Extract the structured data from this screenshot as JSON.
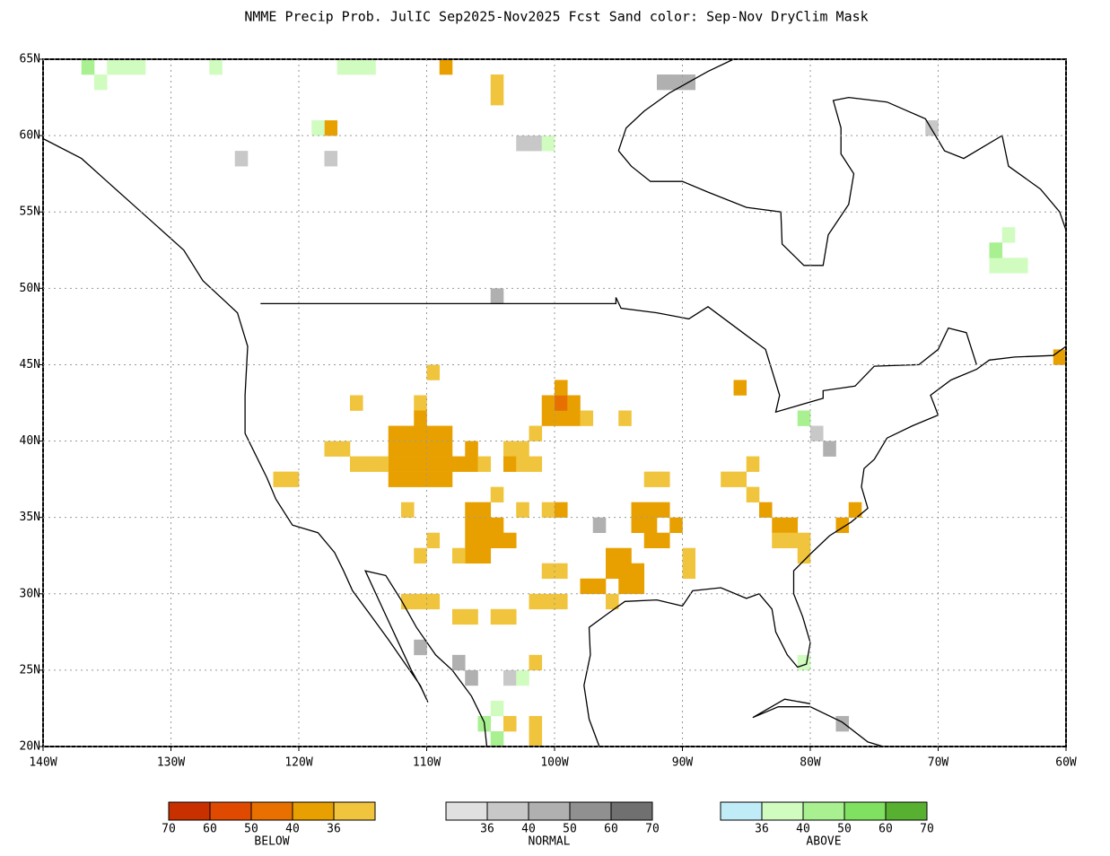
{
  "title": "NMME Precip Prob. JulIC  Sep2025-Nov2025 Fcst  Sand color: Sep-Nov DryClim Mask",
  "map": {
    "lonlim": [
      -140,
      -60
    ],
    "latlim": [
      20,
      65
    ],
    "lonticks": [
      {
        "value": -140,
        "label": "140W"
      },
      {
        "value": -130,
        "label": "130W"
      },
      {
        "value": -120,
        "label": "120W"
      },
      {
        "value": -110,
        "label": "110W"
      },
      {
        "value": -100,
        "label": "100W"
      },
      {
        "value": -90,
        "label": "90W"
      },
      {
        "value": -80,
        "label": "80W"
      },
      {
        "value": -70,
        "label": "70W"
      },
      {
        "value": -60,
        "label": "60W"
      }
    ],
    "latticks": [
      {
        "value": 20,
        "label": "20N"
      },
      {
        "value": 25,
        "label": "25N"
      },
      {
        "value": 30,
        "label": "30N"
      },
      {
        "value": 35,
        "label": "35N"
      },
      {
        "value": 40,
        "label": "40N"
      },
      {
        "value": 45,
        "label": "45N"
      },
      {
        "value": 50,
        "label": "50N"
      },
      {
        "value": 55,
        "label": "55N"
      },
      {
        "value": 60,
        "label": "60N"
      },
      {
        "value": 65,
        "label": "65N"
      }
    ],
    "grid": true
  },
  "legends": [
    {
      "label": "BELOW",
      "colors": [
        "#c83000",
        "#e04a00",
        "#e87000",
        "#e8a000",
        "#f0c43c"
      ],
      "ticks": [
        70,
        60,
        50,
        40,
        36
      ],
      "cells": [
        [
          -113,
          37,
          3
        ],
        [
          -112,
          37,
          3
        ],
        [
          -111,
          37,
          3
        ],
        [
          -110,
          37,
          3
        ],
        [
          -109,
          37,
          3
        ],
        [
          -113,
          38,
          3
        ],
        [
          -112,
          38,
          3
        ],
        [
          -111,
          38,
          3
        ],
        [
          -110,
          38,
          3
        ],
        [
          -109,
          38,
          3
        ],
        [
          -113,
          39,
          3
        ],
        [
          -112,
          39,
          3
        ],
        [
          -111,
          39,
          3
        ],
        [
          -110,
          39,
          3
        ],
        [
          -109,
          39,
          3
        ],
        [
          -113,
          40,
          3
        ],
        [
          -112,
          40,
          3
        ],
        [
          -111,
          40,
          3
        ],
        [
          -110,
          40,
          3
        ],
        [
          -109,
          40,
          3
        ],
        [
          -118,
          39,
          4
        ],
        [
          -117,
          39,
          4
        ],
        [
          -116,
          38,
          4
        ],
        [
          -115,
          38,
          4
        ],
        [
          -114,
          38,
          4
        ],
        [
          -122,
          37,
          4
        ],
        [
          -121,
          37,
          4
        ],
        [
          -116,
          42,
          4
        ],
        [
          -111,
          42,
          4
        ],
        [
          -111,
          41,
          3
        ],
        [
          -110,
          44,
          4
        ],
        [
          -108,
          38,
          3
        ],
        [
          -107,
          38,
          3
        ],
        [
          -107,
          39,
          3
        ],
        [
          -106,
          38,
          4
        ],
        [
          -104,
          39,
          4
        ],
        [
          -103,
          39,
          4
        ],
        [
          -104,
          38,
          3
        ],
        [
          -103,
          38,
          4
        ],
        [
          -102,
          38,
          4
        ],
        [
          -107,
          35,
          3
        ],
        [
          -106,
          35,
          3
        ],
        [
          -107,
          34,
          3
        ],
        [
          -106,
          34,
          3
        ],
        [
          -105,
          34,
          3
        ],
        [
          -107,
          33,
          3
        ],
        [
          -106,
          33,
          3
        ],
        [
          -105,
          33,
          3
        ],
        [
          -104,
          33,
          3
        ],
        [
          -107,
          32,
          3
        ],
        [
          -106,
          32,
          3
        ],
        [
          -108,
          32,
          4
        ],
        [
          -105,
          36,
          4
        ],
        [
          -112,
          35,
          4
        ],
        [
          -110,
          33,
          4
        ],
        [
          -111,
          32,
          4
        ],
        [
          -101,
          41,
          3
        ],
        [
          -100,
          41,
          3
        ],
        [
          -99,
          41,
          3
        ],
        [
          -101,
          42,
          3
        ],
        [
          -100,
          42,
          2
        ],
        [
          -99,
          42,
          3
        ],
        [
          -100,
          43,
          3
        ],
        [
          -102,
          40,
          4
        ],
        [
          -98,
          41,
          4
        ],
        [
          -95,
          41,
          4
        ],
        [
          -103,
          35,
          4
        ],
        [
          -101,
          35,
          4
        ],
        [
          -100,
          35,
          3
        ],
        [
          -100,
          31,
          4
        ],
        [
          -101,
          31,
          4
        ],
        [
          -102,
          29,
          4
        ],
        [
          -101,
          29,
          4
        ],
        [
          -100,
          29,
          4
        ],
        [
          -105,
          28,
          4
        ],
        [
          -104,
          28,
          4
        ],
        [
          -96,
          32,
          3
        ],
        [
          -95,
          32,
          3
        ],
        [
          -96,
          31,
          3
        ],
        [
          -95,
          31,
          3
        ],
        [
          -94,
          31,
          3
        ],
        [
          -95,
          30,
          3
        ],
        [
          -94,
          30,
          3
        ],
        [
          -96,
          29,
          4
        ],
        [
          -97,
          30,
          3
        ],
        [
          -98,
          30,
          3
        ],
        [
          -94,
          35,
          3
        ],
        [
          -93,
          35,
          3
        ],
        [
          -92,
          35,
          3
        ],
        [
          -94,
          34,
          3
        ],
        [
          -93,
          34,
          3
        ],
        [
          -91,
          34,
          3
        ],
        [
          -93,
          33,
          3
        ],
        [
          -92,
          33,
          3
        ],
        [
          -93,
          37,
          4
        ],
        [
          -92,
          37,
          4
        ],
        [
          -86,
          43,
          3
        ],
        [
          -87,
          37,
          4
        ],
        [
          -86,
          37,
          4
        ],
        [
          -85,
          38,
          4
        ],
        [
          -85,
          36,
          4
        ],
        [
          -83,
          34,
          3
        ],
        [
          -82,
          34,
          3
        ],
        [
          -83,
          33,
          4
        ],
        [
          -82,
          33,
          4
        ],
        [
          -81,
          33,
          4
        ],
        [
          -84,
          35,
          3
        ],
        [
          -78,
          34,
          3
        ],
        [
          -77,
          35,
          3
        ],
        [
          -81,
          32,
          4
        ],
        [
          -90,
          31,
          4
        ],
        [
          -90,
          32,
          4
        ],
        [
          -112,
          29,
          4
        ],
        [
          -111,
          29,
          4
        ],
        [
          -110,
          29,
          4
        ],
        [
          -108,
          28,
          4
        ],
        [
          -107,
          28,
          4
        ],
        [
          -102,
          25,
          4
        ],
        [
          -102,
          21,
          4
        ],
        [
          -102,
          20,
          4
        ],
        [
          -104,
          21,
          4
        ],
        [
          -105,
          63,
          4
        ],
        [
          -105,
          62,
          4
        ],
        [
          -118,
          60,
          3
        ],
        [
          -61,
          45,
          3
        ],
        [
          -109,
          64,
          3
        ]
      ]
    },
    {
      "label": "NORMAL",
      "colors": [
        "#e0e0e0",
        "#c8c8c8",
        "#b0b0b0",
        "#909090",
        "#707070"
      ],
      "ticks": [
        36,
        40,
        50,
        60,
        70
      ],
      "cells": [
        [
          -92,
          63,
          2
        ],
        [
          -91,
          63,
          2
        ],
        [
          -90,
          63,
          2
        ],
        [
          -103,
          59,
          1
        ],
        [
          -102,
          59,
          1
        ],
        [
          -125,
          58,
          1
        ],
        [
          -118,
          58,
          1
        ],
        [
          -105,
          49,
          2
        ],
        [
          -71,
          60,
          1
        ],
        [
          -80,
          40,
          1
        ],
        [
          -79,
          39,
          2
        ],
        [
          -97,
          34,
          2
        ],
        [
          -111,
          26,
          2
        ],
        [
          -108,
          25,
          2
        ],
        [
          -107,
          24,
          2
        ],
        [
          -104,
          24,
          1
        ],
        [
          -78,
          21,
          2
        ]
      ]
    },
    {
      "label": "ABOVE",
      "colors": [
        "#c0ecf8",
        "#d0fcc0",
        "#a8f090",
        "#80e060",
        "#58b030"
      ],
      "ticks": [
        36,
        40,
        50,
        60,
        70
      ],
      "cells": [
        [
          -137,
          64,
          2
        ],
        [
          -135,
          64,
          1
        ],
        [
          -134,
          64,
          1
        ],
        [
          -133,
          64,
          1
        ],
        [
          -136,
          63,
          1
        ],
        [
          -127,
          64,
          1
        ],
        [
          -117,
          64,
          1
        ],
        [
          -116,
          64,
          1
        ],
        [
          -115,
          64,
          1
        ],
        [
          -119,
          60,
          1
        ],
        [
          -101,
          59,
          1
        ],
        [
          -66,
          51,
          1
        ],
        [
          -65,
          51,
          1
        ],
        [
          -64,
          51,
          1
        ],
        [
          -66,
          52,
          2
        ],
        [
          -65,
          53,
          1
        ],
        [
          -81,
          41,
          2
        ],
        [
          -81,
          25,
          1
        ],
        [
          -106,
          21,
          2
        ],
        [
          -105,
          20,
          2
        ],
        [
          -105,
          22,
          1
        ],
        [
          -103,
          24,
          1
        ]
      ]
    }
  ]
}
